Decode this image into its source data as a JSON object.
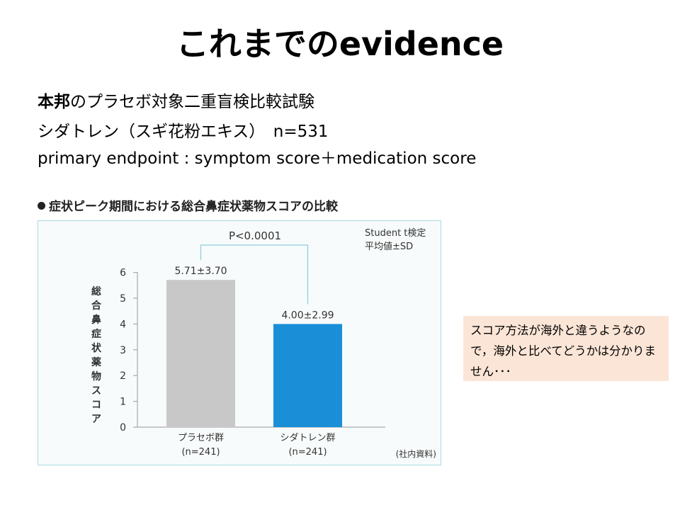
{
  "title": "これまでのevidence",
  "lines": {
    "line1_bold": "本邦",
    "line1_rest": "のプラセボ対象二重盲検比較試験",
    "line2": "シダトレン（スギ花粉エキス）　n=531",
    "line3": "primary endpoint : symptom score＋medication score"
  },
  "chart_heading": "症状ピーク期間における総合鼻症状薬物スコアの比較",
  "note": "スコア方法が海外と違うようなので，海外と比べてどうかは分かりません･･･",
  "chart_data": {
    "type": "bar",
    "title": "症状ピーク期間における総合鼻症状薬物スコアの比較",
    "categories": [
      "プラセボ群",
      "シダトレン群"
    ],
    "category_n": [
      "(n=241)",
      "(n=241)"
    ],
    "values": [
      5.71,
      4.0
    ],
    "value_labels": [
      "5.71±3.70",
      "4.00±2.99"
    ],
    "bar_colors": [
      "#c8c8c8",
      "#1a8fd8"
    ],
    "ylabel": "総合鼻症状薬物スコア",
    "ylim": [
      0,
      6
    ],
    "yticks": [
      "0",
      "1",
      "2",
      "3",
      "4",
      "5",
      "6"
    ],
    "comparison_label": "P<0.0001",
    "method_lines": [
      "Student t検定",
      "平均値±SD"
    ],
    "source": "(社内資料)",
    "grid": false,
    "legend": "none"
  }
}
